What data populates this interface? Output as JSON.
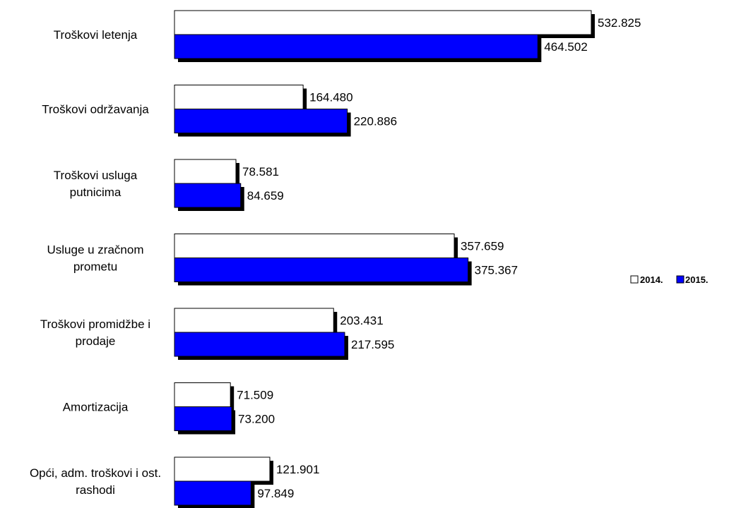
{
  "chart_data": {
    "type": "bar",
    "orientation": "horizontal",
    "title": "",
    "xlabel": "",
    "ylabel": "",
    "grid": false,
    "axes_visible": false,
    "legend_placement": "right",
    "categories": [
      [
        "Troškovi letenja"
      ],
      [
        "Troškovi održavanja"
      ],
      [
        "Troškovi usluga",
        "putnicima"
      ],
      [
        "Usluge u zračnom",
        "prometu"
      ],
      [
        "Troškovi promidžbe i",
        "prodaje"
      ],
      [
        "Amortizacija"
      ],
      [
        "Opći, adm. troškovi i ost.",
        "rashodi"
      ]
    ],
    "series": [
      {
        "name": "2014.",
        "color": "#ffffff",
        "values": [
          532825,
          164480,
          78581,
          357659,
          203431,
          71509,
          121901
        ],
        "value_labels": [
          "532.825",
          "164.480",
          "78.581",
          "357.659",
          "203.431",
          "71.509",
          "121.901"
        ]
      },
      {
        "name": "2015.",
        "color": "#0000ff",
        "values": [
          464502,
          220886,
          84659,
          375367,
          217595,
          73200,
          97849
        ],
        "value_labels": [
          "464.502",
          "220.886",
          "84.659",
          "375.367",
          "217.595",
          "73.200",
          "97.849"
        ]
      }
    ]
  }
}
